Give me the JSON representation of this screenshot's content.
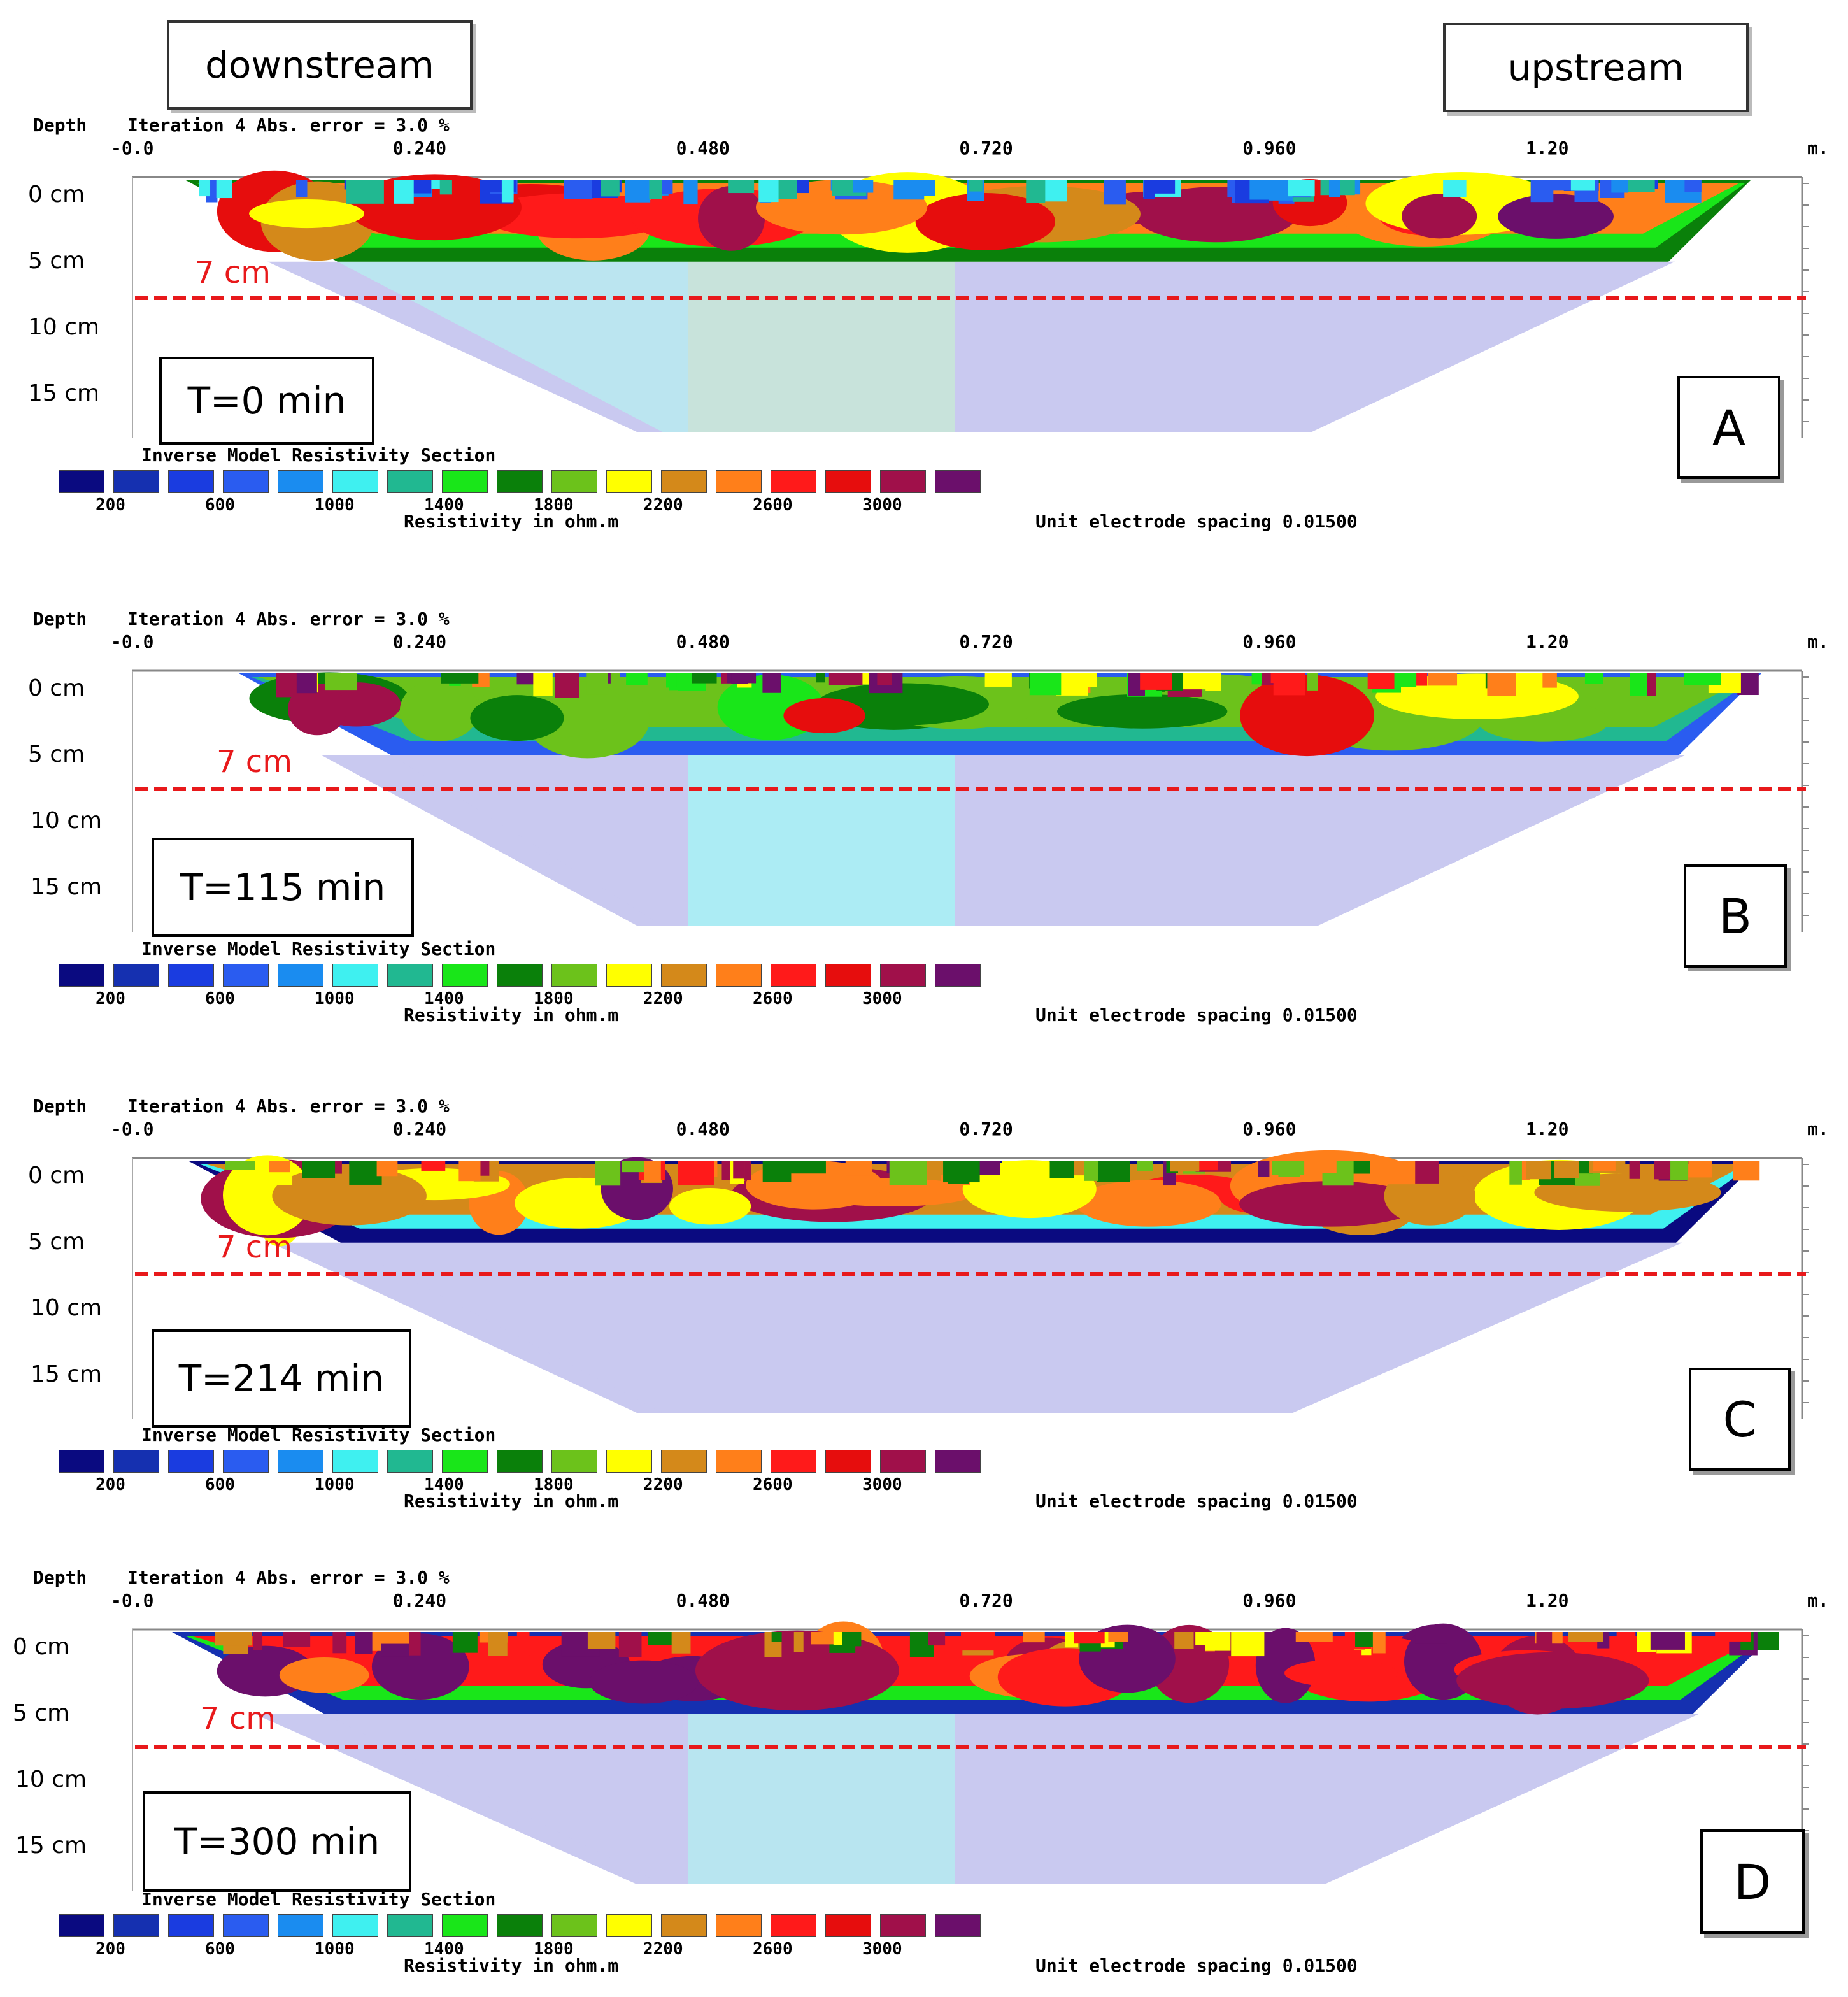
{
  "header": {
    "left_label": "downstream",
    "right_label": "upstream"
  },
  "chart_data": [
    {
      "type": "heatmap",
      "panel_label": "A",
      "time_label": "T=0 min",
      "boundary_label": "7 cm"
    },
    {
      "type": "heatmap",
      "panel_label": "B",
      "time_label": "T=115 min",
      "boundary_label": "7 cm"
    },
    {
      "type": "heatmap",
      "panel_label": "C",
      "time_label": "T=214 min",
      "boundary_label": "7 cm"
    },
    {
      "type": "heatmap",
      "panel_label": "D",
      "time_label": "T=300 min",
      "boundary_label": "7 cm"
    }
  ],
  "shared": {
    "depth_title": "Depth",
    "iteration_text": "Iteration 4 Abs. error = 3.0 %",
    "x_ticks": [
      "-0.0",
      "0.240",
      "0.480",
      "0.720",
      "0.960",
      "1.20"
    ],
    "x_unit": "m.",
    "depth_ticks": [
      "0 cm",
      "5 cm",
      "10 cm",
      "15 cm"
    ],
    "section_title": "Inverse Model Resistivity Section",
    "legend_ticks": [
      "200",
      "600",
      "1000",
      "1400",
      "1800",
      "2200",
      "2600",
      "3000"
    ],
    "legend_colors": [
      "#0a0a80",
      "#1530b0",
      "#1a3ce0",
      "#2a5cf0",
      "#1a8cf0",
      "#3ff0f0",
      "#21b891",
      "#19e619",
      "#0a800a",
      "#6cc21b",
      "#ffff00",
      "#d4891a",
      "#ff7f1a",
      "#ff1a1a",
      "#e60d0d",
      "#a0104a",
      "#6b0f6b"
    ],
    "resistivity_label": "Resistivity in ohm.m",
    "spacing_label": "Unit electrode spacing 0.01500",
    "x_range": [
      0,
      1.32
    ],
    "depth_range_cm": [
      0,
      20
    ],
    "boundary_depth_cm": 7
  }
}
